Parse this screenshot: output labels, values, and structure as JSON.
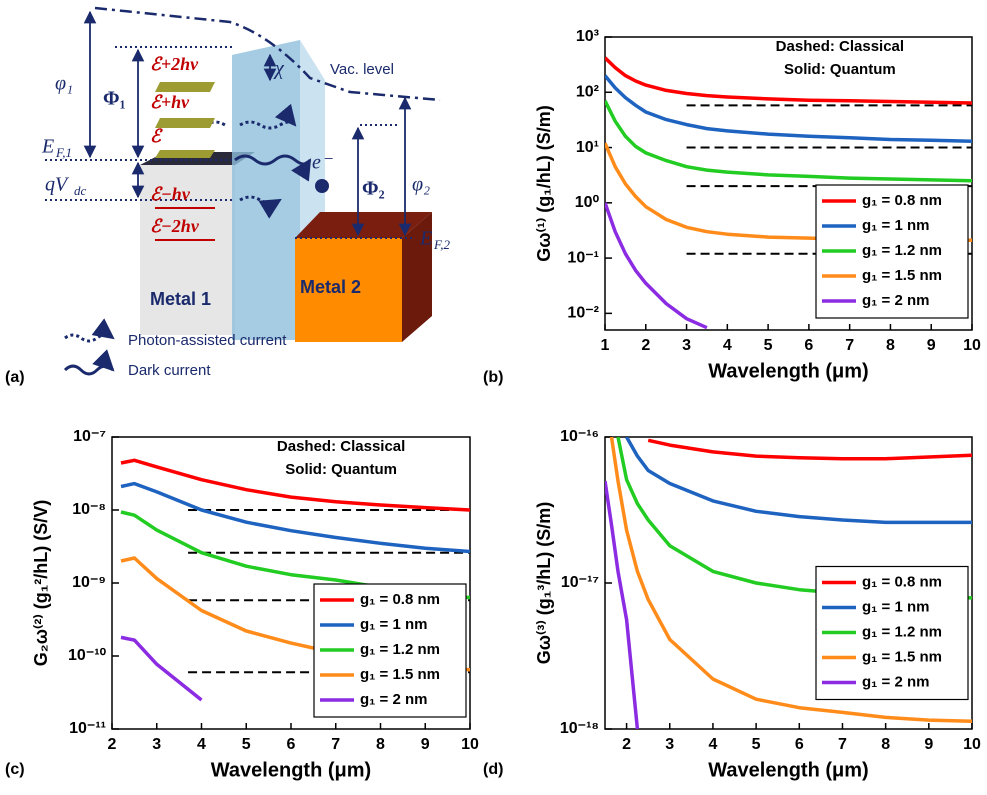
{
  "panel_labels": [
    "(a)",
    "(b)",
    "(c)",
    "(d)"
  ],
  "diagram": {
    "labels": [
      "φ₁",
      "Φ₁",
      "E",
      "F,1",
      "qV",
      "dc",
      "ℰ+2hν",
      "ℰ+hν",
      "ℰ",
      "ℰ−hν",
      "ℰ−2hν",
      "χ",
      "Vac. level",
      "e⁻",
      "Φ₂",
      "φ₂",
      "E",
      "F,2",
      "Metal 1",
      "Metal 2",
      "Photon-assisted current",
      "Dark current"
    ]
  },
  "chart_data": [
    {
      "type": "line",
      "y_scale": "log",
      "legend": "lower right",
      "annotations": [
        "Dashed: Classical",
        "Solid: Quantum"
      ],
      "xlabel": "Wavelength (μm)",
      "ylabel": "Gω⁽¹⁾ (g₁/hL) (S/m)",
      "xlim": [
        1,
        10
      ],
      "ylim": [
        0.005,
        1000
      ],
      "xticks": [
        1,
        2,
        3,
        4,
        5,
        6,
        7,
        8,
        9,
        10
      ],
      "yticks": [
        {
          "value": 0.01,
          "label": "10⁻²"
        },
        {
          "value": 0.1,
          "label": "10⁻¹"
        },
        {
          "value": 1,
          "label": "10⁰"
        },
        {
          "value": 10,
          "label": "10¹"
        },
        {
          "value": 100,
          "label": "10²"
        },
        {
          "value": 1000,
          "label": "10³"
        }
      ],
      "x": [
        1,
        1.25,
        1.5,
        1.75,
        2,
        2.5,
        3,
        3.5,
        4,
        5,
        6,
        7,
        8,
        9,
        10
      ],
      "series": [
        {
          "name": "g₁ = 0.8 nm",
          "color": "#ff0000",
          "values": [
            420,
            280,
            200,
            160,
            135,
            108,
            95,
            87,
            82,
            76,
            72,
            70,
            68,
            66,
            64
          ]
        },
        {
          "name": "g₁ = 1 nm",
          "color": "#1e63c0",
          "values": [
            200,
            120,
            80,
            58,
            44,
            32,
            26,
            22,
            20,
            17.5,
            16,
            15,
            14,
            13.5,
            13
          ]
        },
        {
          "name": "g₁ = 1.2 nm",
          "color": "#22cc22",
          "values": [
            70,
            30,
            16,
            10.5,
            8,
            5.8,
            4.5,
            3.9,
            3.6,
            3.2,
            3.0,
            2.8,
            2.7,
            2.6,
            2.5
          ]
        },
        {
          "name": "g₁ = 1.5 nm",
          "color": "#ff8c1a",
          "values": [
            12,
            4.5,
            2.2,
            1.3,
            0.85,
            0.5,
            0.36,
            0.3,
            0.27,
            0.24,
            0.23,
            0.22,
            0.22,
            0.21,
            0.21
          ]
        },
        {
          "name": "g₁ = 2 nm",
          "color": "#8b2be2",
          "values": [
            1.0,
            0.3,
            0.12,
            0.06,
            0.035,
            0.015,
            0.008,
            0.0055,
            null,
            null,
            null,
            null,
            null,
            null,
            null
          ]
        }
      ],
      "dashed_x": [
        3,
        10
      ],
      "dashed_values": [
        58,
        10,
        2.0,
        0.12
      ]
    },
    {
      "type": "line",
      "y_scale": "log",
      "legend": "lower right",
      "annotations": [
        "Dashed: Classical",
        "Solid: Quantum"
      ],
      "xlabel": "Wavelength (μm)",
      "ylabel": "G₂ω⁽²⁾ (g₁²/hL) (S/V)",
      "xlim": [
        2,
        10
      ],
      "ylim": [
        1e-11,
        1e-07
      ],
      "xticks": [
        2,
        3,
        4,
        5,
        6,
        7,
        8,
        9,
        10
      ],
      "yticks": [
        {
          "value": 1e-11,
          "label": "10⁻¹¹"
        },
        {
          "value": 1e-10,
          "label": "10⁻¹⁰"
        },
        {
          "value": 1e-09,
          "label": "10⁻⁹"
        },
        {
          "value": 1e-08,
          "label": "10⁻⁸"
        },
        {
          "value": 1e-07,
          "label": "10⁻⁷"
        }
      ],
      "x": [
        2.2,
        2.5,
        3,
        4,
        5,
        6,
        7,
        8,
        9,
        10
      ],
      "series": [
        {
          "name": "g₁ = 0.8 nm",
          "color": "#ff0000",
          "values": [
            4.4e-08,
            4.8e-08,
            3.9e-08,
            2.6e-08,
            1.9e-08,
            1.5e-08,
            1.3e-08,
            1.17e-08,
            1.08e-08,
            1e-08
          ]
        },
        {
          "name": "g₁ = 1 nm",
          "color": "#1e63c0",
          "values": [
            2.1e-08,
            2.3e-08,
            1.77e-08,
            1e-08,
            6.8e-09,
            5.2e-09,
            4.2e-09,
            3.5e-09,
            3e-09,
            2.7e-09
          ]
        },
        {
          "name": "g₁ = 1.2 nm",
          "color": "#22cc22",
          "values": [
            9.4e-09,
            8.5e-09,
            5.3e-09,
            2.6e-09,
            1.7e-09,
            1.3e-09,
            1.1e-09,
            8.7e-10,
            7.2e-10,
            6.3e-10
          ]
        },
        {
          "name": "g₁ = 1.5 nm",
          "color": "#ff8c1a",
          "values": [
            2e-09,
            2.2e-09,
            1.15e-09,
            4.2e-10,
            2.2e-10,
            1.5e-10,
            1.1e-10,
            8.3e-11,
            7.2e-11,
            6.5e-11
          ]
        },
        {
          "name": "g₁ = 2 nm",
          "color": "#8b2be2",
          "values": [
            1.8e-10,
            1.65e-10,
            7.7e-11,
            2.5e-11,
            null,
            null,
            null,
            null,
            null,
            null
          ]
        }
      ],
      "dashed_x": [
        3.7,
        10
      ],
      "dashed_values": [
        1e-08,
        2.6e-09,
        5.8e-10,
        6e-11
      ]
    },
    {
      "type": "line",
      "y_scale": "log",
      "legend": "center right",
      "xlabel": "Wavelength (μm)",
      "ylabel": "Gω⁽³⁾ (g₁³/hL) (S/m)",
      "xlim": [
        1.5,
        10
      ],
      "ylim": [
        1e-18,
        1e-16
      ],
      "xticks": [
        2,
        3,
        4,
        5,
        6,
        7,
        8,
        9,
        10
      ],
      "yticks": [
        {
          "value": 1e-18,
          "label": "10⁻¹⁸"
        },
        {
          "value": 1e-17,
          "label": "10⁻¹⁷"
        },
        {
          "value": 1e-16,
          "label": "10⁻¹⁶"
        }
      ],
      "x": [
        1.5,
        1.65,
        1.8,
        2,
        2.25,
        2.5,
        3,
        4,
        5,
        6,
        7,
        8,
        9,
        10
      ],
      "series": [
        {
          "name": "g₁ = 0.8 nm",
          "color": "#ff0000",
          "values": [
            null,
            null,
            null,
            null,
            null,
            9.5e-17,
            8.8e-17,
            7.9e-17,
            7.4e-17,
            7.2e-17,
            7.1e-17,
            7.1e-17,
            7.3e-17,
            7.5e-17
          ]
        },
        {
          "name": "g₁ = 1 nm",
          "color": "#1e63c0",
          "values": [
            null,
            null,
            null,
            1e-16,
            7.4e-17,
            5.9e-17,
            4.8e-17,
            3.65e-17,
            3.1e-17,
            2.85e-17,
            2.7e-17,
            2.6e-17,
            2.6e-17,
            2.6e-17
          ]
        },
        {
          "name": "g₁ = 1.2 nm",
          "color": "#22cc22",
          "values": [
            null,
            null,
            1e-16,
            5.1e-17,
            3.5e-17,
            2.7e-17,
            1.8e-17,
            1.2e-17,
            1e-17,
            9e-18,
            8.5e-18,
            8.1e-18,
            8e-18,
            7.9e-18
          ]
        },
        {
          "name": "g₁ = 1.5 nm",
          "color": "#ff8c1a",
          "values": [
            null,
            1e-16,
            5e-17,
            2.3e-17,
            1.2e-17,
            7.7e-18,
            4.1e-18,
            2.2e-18,
            1.6e-18,
            1.4e-18,
            1.3e-18,
            1.2e-18,
            1.15e-18,
            1.13e-18
          ]
        },
        {
          "name": "g₁ = 2 nm",
          "color": "#8b2be2",
          "values": [
            5e-17,
            2.5e-17,
            1.2e-17,
            5.6e-18,
            1e-18,
            null,
            null,
            null,
            null,
            null,
            null,
            null,
            null,
            null
          ]
        }
      ]
    }
  ]
}
